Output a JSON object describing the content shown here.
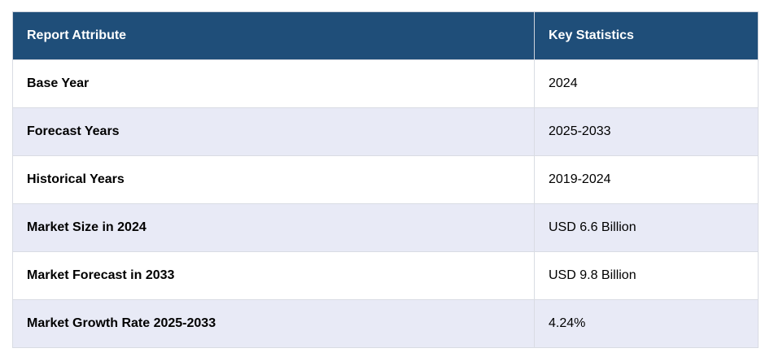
{
  "table": {
    "headers": [
      "Report Attribute",
      "Key Statistics"
    ],
    "rows": [
      {
        "attribute": "Base Year",
        "value": "2024"
      },
      {
        "attribute": "Forecast Years",
        "value": "2025-2033"
      },
      {
        "attribute": "Historical Years",
        "value": "2019-2024"
      },
      {
        "attribute": "Market Size in 2024",
        "value": "USD 6.6 Billion"
      },
      {
        "attribute": "Market Forecast in 2033",
        "value": "USD 9.8 Billion"
      },
      {
        "attribute": "Market Growth Rate 2025-2033",
        "value": "4.24%"
      }
    ]
  },
  "colors": {
    "header_bg": "#1f4e79",
    "header_text": "#ffffff",
    "row_alt_bg": "#e8eaf6",
    "row_bg": "#ffffff"
  }
}
